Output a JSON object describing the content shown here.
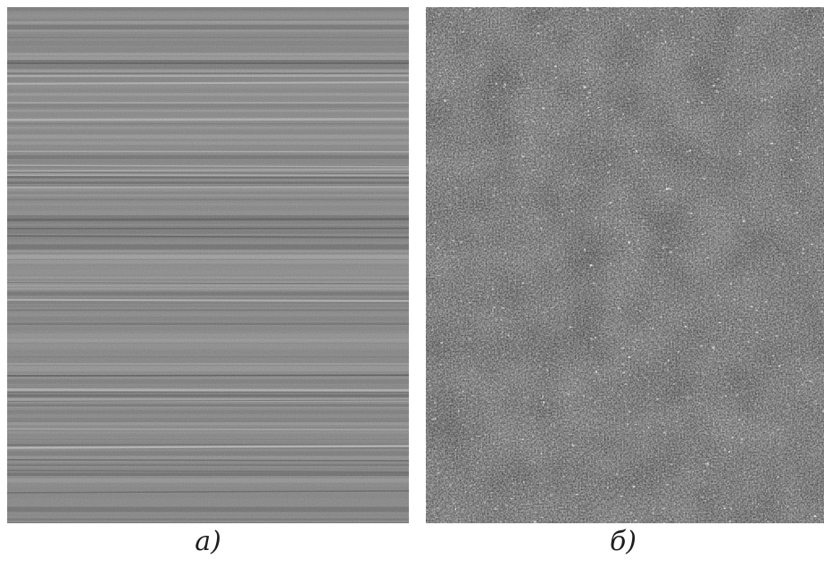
{
  "figure": {
    "panels": [
      {
        "caption": "а)",
        "texture": "horizontal-striations",
        "base_color": "#8a8a8a"
      },
      {
        "caption": "б)",
        "texture": "fine-granular",
        "base_color": "#5c5c5c"
      }
    ]
  }
}
